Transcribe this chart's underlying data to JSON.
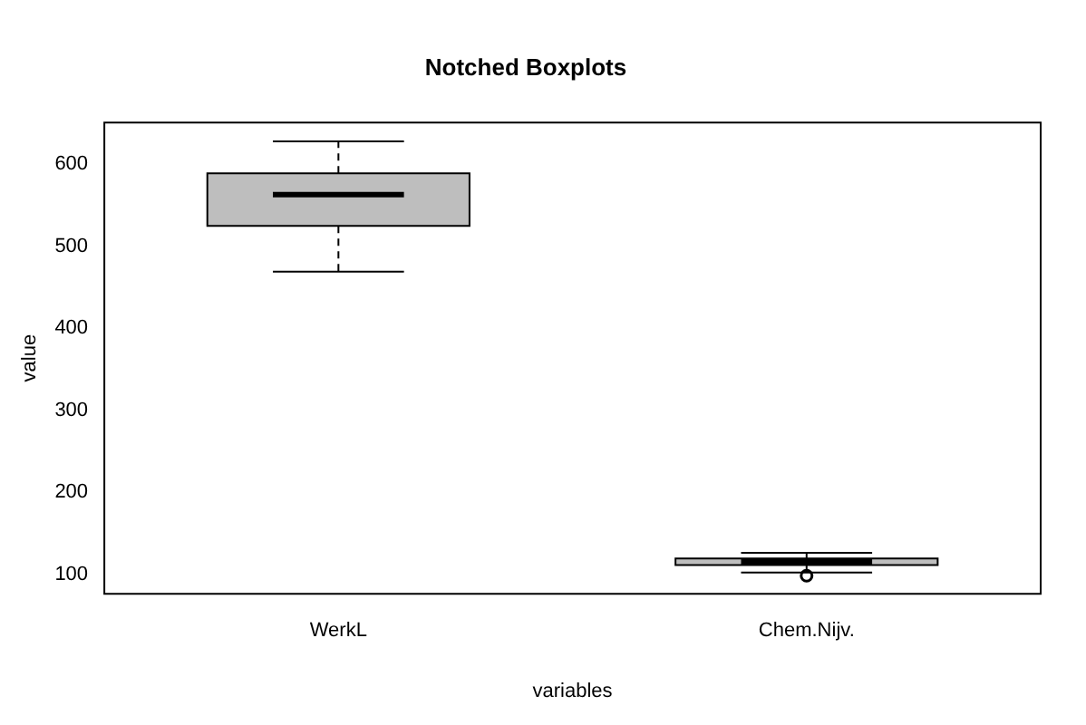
{
  "chart_data": {
    "type": "box",
    "title": "Notched Boxplots",
    "xlabel": "variables",
    "ylabel": "value",
    "categories": [
      "WerkL",
      "Chem.Nijv."
    ],
    "boxes": [
      {
        "low": 469,
        "q1": 525,
        "median": 563,
        "q3": 589,
        "high": 628
      },
      {
        "low": 102,
        "q1": 111,
        "median": 115,
        "q3": 119,
        "high": 126,
        "outliers": [
          98
        ]
      }
    ],
    "color": "#bebebe",
    "ylim": [
      76,
      651
    ],
    "yticks": [
      100,
      200,
      300,
      400,
      500,
      600
    ],
    "grid": false,
    "legend": false
  }
}
